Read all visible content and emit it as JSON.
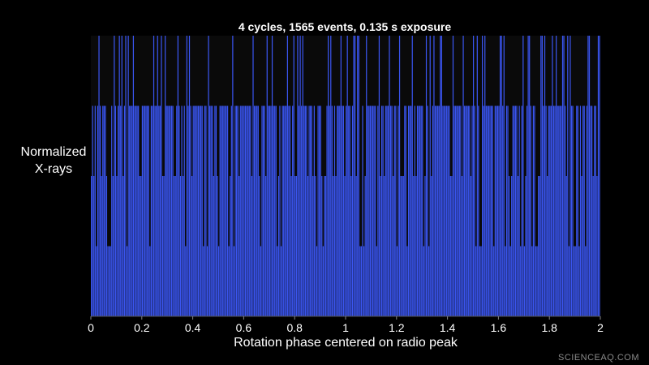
{
  "chart_data": {
    "type": "bar",
    "title": "4 cycles, 1565 events, 0.135 s exposure",
    "xlabel": "Rotation phase centered on radio peak",
    "ylabel_lines": [
      "Normalized",
      "X-rays"
    ],
    "xlim": [
      0,
      2
    ],
    "x_ticks": [
      "0",
      "0.2",
      "0.4",
      "0.6",
      "0.8",
      "1",
      "1.2",
      "1.4",
      "1.6",
      "1.8",
      "2"
    ],
    "y_ticks": "none",
    "grid": false,
    "bar_color": "#3a55f0",
    "background_color": "#000000",
    "n_bins": 400,
    "level_values": [
      0.25,
      0.5,
      0.75,
      1.0
    ],
    "level_weights": [
      0.1,
      0.15,
      0.55,
      0.2
    ],
    "note": "Histogram of many narrow phase bins; heights vary between discrete normalized levels, values approximate"
  },
  "watermark": "SCIENCEAQ.COM"
}
